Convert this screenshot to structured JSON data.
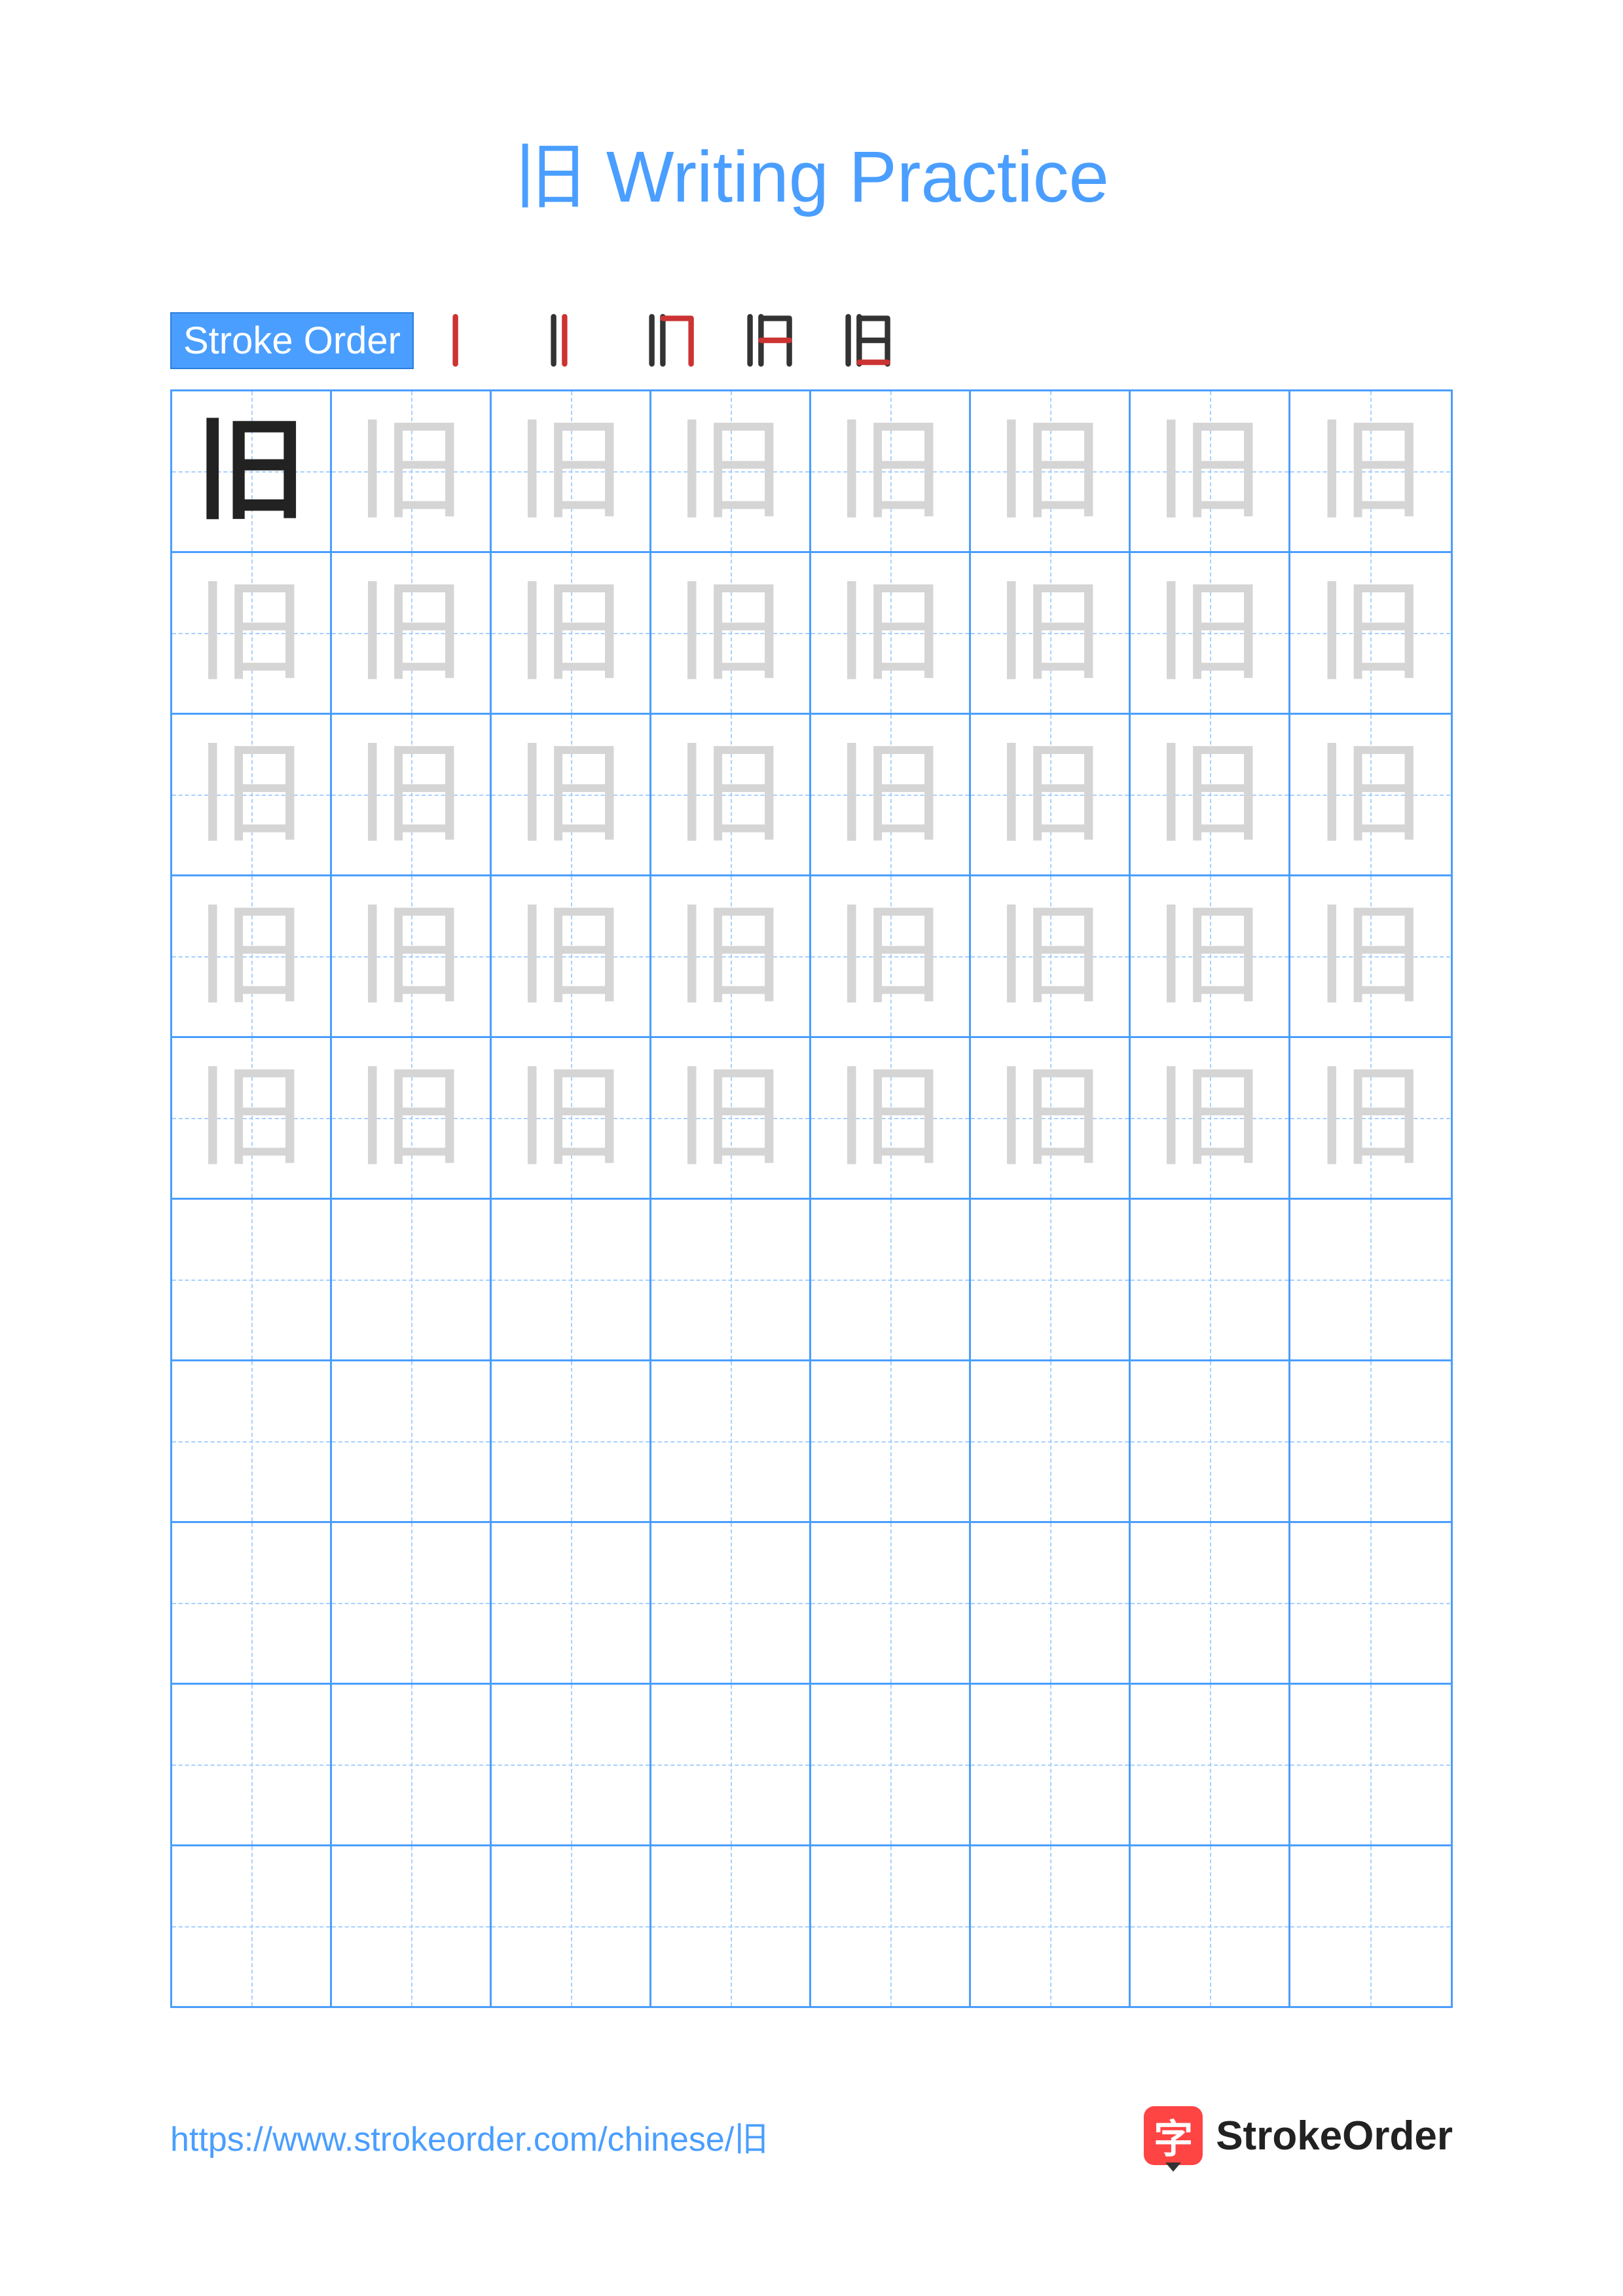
{
  "title": {
    "character": "旧",
    "text": "Writing Practice",
    "color": "#4a9eff"
  },
  "stroke_order": {
    "label": "Stroke Order",
    "label_bg": "#4a9eff",
    "label_color": "#ffffff",
    "steps": 5,
    "existing_color": "#333333",
    "new_stroke_color": "#cc3333"
  },
  "grid": {
    "rows": 10,
    "cols": 8,
    "border_color": "#4a9eff",
    "guide_color": "#a8d0ff",
    "character": "旧",
    "solid_cells": [
      [
        0,
        0
      ]
    ],
    "trace_rows": [
      0,
      1,
      2,
      3,
      4
    ],
    "empty_rows": [
      5,
      6,
      7,
      8,
      9
    ],
    "solid_color": "#222222",
    "trace_color": "#d5d5d5",
    "char_fontsize": 170
  },
  "footer": {
    "url": "https://www.strokeorder.com/chinese/旧",
    "url_color": "#4a9eff",
    "logo_char": "字",
    "logo_text": "StrokeOrder",
    "logo_bg": "#ff4444"
  }
}
